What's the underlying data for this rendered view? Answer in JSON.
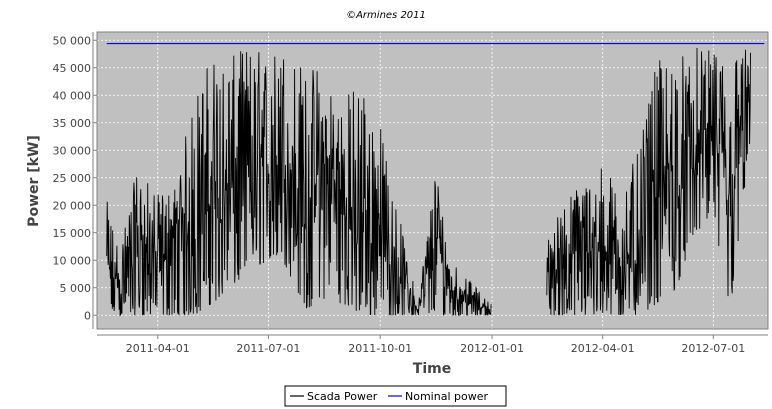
{
  "chart_data": {
    "type": "line",
    "title": "©Armines 2011",
    "xlabel": "Time",
    "ylabel": "Power [kW]",
    "ylim": [
      -2500,
      51500
    ],
    "xlim": [
      "2011-02-10",
      "2012-08-15"
    ],
    "yticks": [
      0,
      5000,
      10000,
      15000,
      20000,
      25000,
      30000,
      35000,
      40000,
      45000,
      50000
    ],
    "ytick_labels": [
      "0",
      "5 000",
      "10 000",
      "15 000",
      "20 000",
      "25 000",
      "30 000",
      "35 000",
      "40 000",
      "45 000",
      "50 000"
    ],
    "xticks": [
      "2011-04-01",
      "2011-07-01",
      "2011-10-01",
      "2012-01-01",
      "2012-04-01",
      "2012-07-01"
    ],
    "xtick_labels": [
      "2011-04-01",
      "2011-07-01",
      "2011-10-01",
      "2012-01-01",
      "2012-04-01",
      "2012-07-01"
    ],
    "grid": true,
    "plot_background": "#c0c0c0",
    "legend_position": "bottom-center",
    "series": [
      {
        "name": "Scada Power",
        "color": "#000000",
        "x": [
          "2011-02-18",
          "2011-03-01",
          "2011-03-15",
          "2011-04-01",
          "2011-04-15",
          "2011-05-01",
          "2011-05-15",
          "2011-06-01",
          "2011-06-15",
          "2011-07-01",
          "2011-07-15",
          "2011-08-01",
          "2011-08-15",
          "2011-09-01",
          "2011-09-15",
          "2011-10-01",
          "2011-10-15",
          "2011-11-01",
          "2011-11-15",
          "2011-12-01",
          "2011-12-15",
          "2012-01-01",
          "2012-01-15",
          "2012-02-01",
          "2012-02-15",
          "2012-03-01",
          "2012-03-15",
          "2012-04-01",
          "2012-04-15",
          "2012-05-01",
          "2012-05-15",
          "2012-06-01",
          "2012-06-15",
          "2012-07-01",
          "2012-07-15",
          "2012-08-01"
        ],
        "values": [
          21000,
          12000,
          27000,
          22000,
          24000,
          40000,
          48000,
          47000,
          49500,
          48000,
          50000,
          45000,
          47000,
          40000,
          44000,
          35000,
          20000,
          2000,
          28000,
          10000,
          6000,
          2000,
          null,
          null,
          15000,
          21000,
          25000,
          28000,
          23000,
          30000,
          46000,
          48000,
          49000,
          48000,
          49000,
          48500
        ],
        "lows": [
          0,
          0,
          0,
          0,
          0,
          0,
          2000,
          5000,
          8000,
          10000,
          9000,
          1000,
          3000,
          2000,
          0,
          0,
          0,
          0,
          0,
          0,
          0,
          0,
          null,
          null,
          0,
          0,
          0,
          0,
          0,
          0,
          2000,
          5000,
          15000,
          17000,
          1000,
          33000
        ]
      },
      {
        "name": "Nominal power",
        "color": "#0000ff",
        "x": [
          "2011-02-18",
          "2012-08-12"
        ],
        "values": [
          49400,
          49400
        ]
      }
    ]
  }
}
